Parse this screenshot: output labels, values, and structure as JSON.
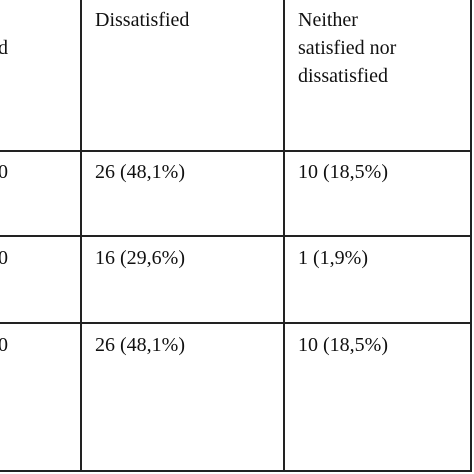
{
  "table": {
    "header": [
      "d",
      "Dissatisfied",
      "Neither satisfied nor dissatisfied"
    ],
    "rows": [
      [
        "0",
        "26 (48,1%)",
        "10 (18,5%)"
      ],
      [
        "0",
        "16 (29,6%)",
        "1 (1,9%)"
      ],
      [
        "0",
        "26 (48,1%)",
        "10 (18,5%)"
      ]
    ]
  }
}
